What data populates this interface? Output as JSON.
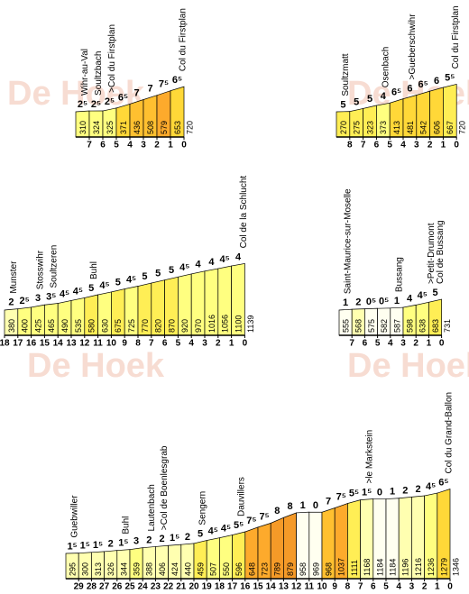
{
  "watermark": "De Hoek",
  "chart_data": [
    {
      "type": "profile",
      "altitudes": [
        310,
        324,
        325,
        371,
        436,
        508,
        579,
        653,
        720
      ],
      "gradients": [
        2.5,
        2.5,
        2.5,
        6.5,
        7,
        7,
        7.5,
        6.5
      ],
      "gradient_labels": [
        "2⁵",
        "2⁵",
        "2⁵",
        "6⁵",
        "7",
        "7",
        "7⁵",
        "6⁵"
      ],
      "km": [
        7,
        6,
        5,
        4,
        3,
        2,
        1,
        0
      ],
      "places": [
        "Wihr-au-Val",
        "Soultzbach",
        ">Col du Firstplan",
        null,
        null,
        null,
        null,
        null,
        "Col du Firstplan"
      ]
    },
    {
      "type": "profile",
      "altitudes": [
        270,
        275,
        323,
        373,
        413,
        481,
        542,
        606,
        667,
        720
      ],
      "gradients": [
        5,
        5,
        5,
        4,
        6.5,
        6,
        6.5,
        6,
        5.5
      ],
      "gradient_labels": [
        "5",
        "5",
        "5",
        "4",
        "6⁵",
        "6",
        "6⁵",
        "6",
        "5⁵"
      ],
      "km": [
        8,
        7,
        6,
        5,
        4,
        3,
        2,
        1,
        0
      ],
      "places": [
        "Soultzmatt",
        null,
        null,
        "Osenbach",
        null,
        ">Gueberschwihr",
        null,
        null,
        null,
        "Col du Firstplan"
      ]
    },
    {
      "type": "profile",
      "altitudes": [
        380,
        400,
        425,
        465,
        490,
        535,
        580,
        630,
        675,
        725,
        770,
        820,
        870,
        920,
        970,
        1016,
        1056,
        1100,
        1139
      ],
      "gradients": [
        2,
        2.5,
        3,
        3.5,
        4.5,
        4.5,
        5,
        4.5,
        5,
        4.5,
        5,
        5,
        5,
        4.5,
        4,
        4,
        4.5,
        4
      ],
      "gradient_labels": [
        "2",
        "2⁵",
        "3",
        "3⁵",
        "4⁵",
        "4⁵",
        "5",
        "4⁵",
        "5",
        "4⁵",
        "5",
        "5",
        "5",
        "4⁵",
        "4",
        "4",
        "4⁵",
        "4"
      ],
      "km": [
        18,
        17,
        16,
        15,
        14,
        13,
        12,
        11,
        10,
        9,
        8,
        7,
        6,
        5,
        4,
        3,
        2,
        1,
        0
      ],
      "places": [
        "Munster",
        null,
        "Stosswihr",
        "Soultzeren",
        null,
        null,
        "Buhl",
        null,
        null,
        null,
        null,
        null,
        null,
        null,
        null,
        null,
        null,
        null,
        "Col de la Schlucht"
      ]
    },
    {
      "type": "profile",
      "altitudes": [
        555,
        568,
        575,
        582,
        587,
        598,
        638,
        683,
        731
      ],
      "gradients": [
        1,
        2,
        0.5,
        0.5,
        1,
        4,
        4.5,
        5
      ],
      "gradient_labels": [
        "1",
        "2",
        "0⁵",
        "0⁵",
        "1",
        "4",
        "4⁵",
        "5"
      ],
      "km": [
        7,
        6,
        5,
        4,
        3,
        2,
        1,
        0
      ],
      "places": [
        "Saint-Maurice-sur-Moselle",
        null,
        null,
        null,
        "Bussang",
        null,
        null,
        null,
        [
          ">Petit-Drumont",
          "Col de Bussang"
        ]
      ]
    },
    {
      "type": "profile",
      "altitudes": [
        295,
        300,
        313,
        326,
        344,
        359,
        388,
        406,
        424,
        440,
        459,
        507,
        550,
        596,
        648,
        723,
        789,
        879,
        958,
        969,
        968,
        1037,
        1111,
        1168,
        1184,
        1184,
        1196,
        1216,
        1236,
        1279,
        1346
      ],
      "gradients": [
        1.5,
        1.5,
        1.5,
        2,
        1.5,
        3,
        2,
        2,
        1.5,
        2,
        5,
        4.5,
        4.5,
        5.5,
        7.5,
        7.5,
        8,
        8,
        1,
        0,
        7,
        7.5,
        5.5,
        1.5,
        0,
        1,
        2,
        2,
        4.5,
        6.5
      ],
      "gradient_labels": [
        "1⁵",
        "1⁵",
        "1⁵",
        "2",
        "1⁵",
        "3",
        "2",
        "2",
        "1⁵",
        "2",
        "5",
        "4⁵",
        "4⁵",
        "5⁵",
        "7⁵",
        "7⁵",
        "8",
        "8",
        "1",
        "0",
        "7",
        "7⁵",
        "5⁵",
        "1⁵",
        "0",
        "1",
        "2",
        "2",
        "4⁵",
        "6⁵"
      ],
      "km": [
        29,
        28,
        27,
        26,
        25,
        24,
        23,
        22,
        21,
        20,
        19,
        18,
        17,
        16,
        15,
        14,
        13,
        12,
        11,
        10,
        9,
        8,
        7,
        6,
        5,
        4,
        3,
        2,
        1,
        0
      ],
      "places": [
        "Guebwiller",
        null,
        null,
        null,
        "Buhl",
        null,
        "Lautenbach",
        ">Col de Boenlesgrab",
        null,
        null,
        "Sengern",
        null,
        null,
        "Dauvillers",
        null,
        null,
        null,
        null,
        null,
        null,
        null,
        null,
        null,
        ">le Markstein",
        null,
        null,
        null,
        null,
        null,
        null,
        "Col du Grand-Ballon"
      ]
    }
  ]
}
